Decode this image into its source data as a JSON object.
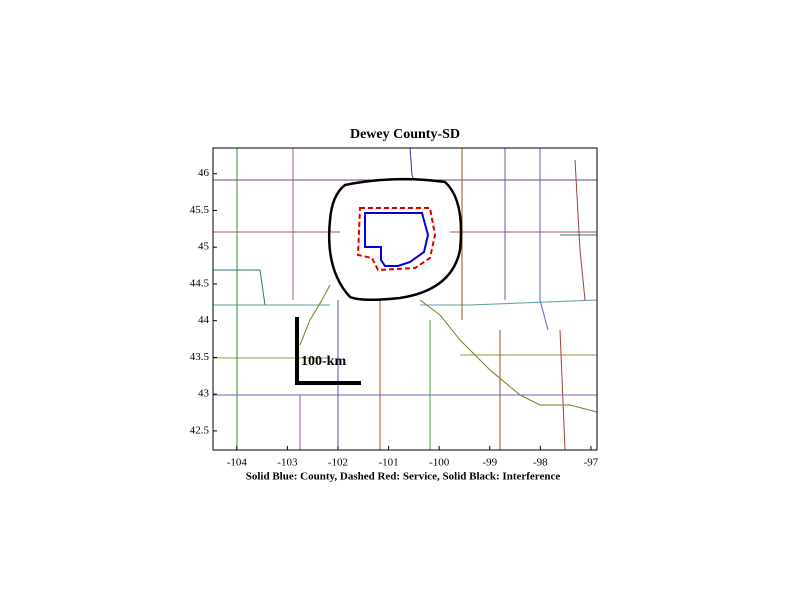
{
  "chart_data": {
    "type": "map",
    "title": "Dewey County-SD",
    "xlabel": "Solid Blue: County, Dashed Red: Service, Solid Black: Interference",
    "scale_label": "100-km",
    "xlim": [
      -104.47,
      -96.88
    ],
    "xticks": [
      -104,
      -103,
      -102,
      -101,
      -100,
      -99,
      -98,
      -97
    ],
    "ylim": [
      42.24,
      46.35
    ],
    "yticks": [
      42.5,
      43,
      43.5,
      44,
      44.5,
      45,
      45.5,
      46
    ]
  }
}
